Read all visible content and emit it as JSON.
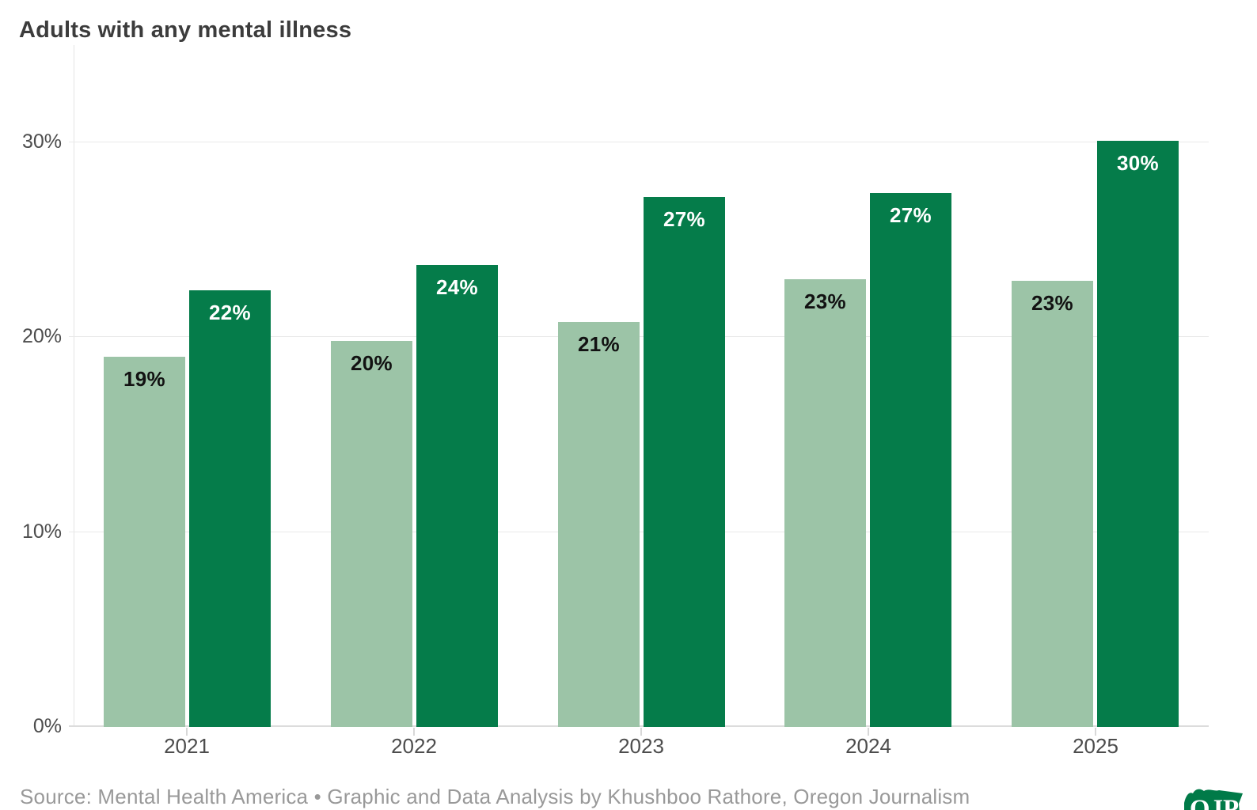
{
  "header": {
    "title": "Adults with any mental illness"
  },
  "chart_data": {
    "type": "bar",
    "title": "Adults with any mental illness",
    "categories": [
      "2021",
      "2022",
      "2023",
      "2024",
      "2025"
    ],
    "series": [
      {
        "name": "lighter-green-series",
        "color": "#9cc4a7",
        "label_color": "#121212",
        "display_labels": [
          "19%",
          "20%",
          "21%",
          "23%",
          "23%"
        ],
        "values": [
          19,
          20,
          21,
          23,
          23
        ],
        "values_precise": [
          19.0,
          19.8,
          20.8,
          23.0,
          22.9
        ]
      },
      {
        "name": "darker-green-series",
        "color": "#057c4a",
        "label_color": "#ffffff",
        "display_labels": [
          "22%",
          "24%",
          "27%",
          "27%",
          "30%"
        ],
        "values": [
          22,
          24,
          27,
          27,
          30
        ],
        "values_precise": [
          22.4,
          23.7,
          27.2,
          27.4,
          30.1
        ]
      }
    ],
    "xlabel": "",
    "ylabel": "",
    "y_axis": {
      "ticks": [
        "0%",
        "10%",
        "20%",
        "30%"
      ],
      "tick_values": [
        0,
        10,
        20,
        30
      ],
      "range": [
        0,
        35
      ]
    },
    "grid": true,
    "legend_position": "none",
    "grid_color": "#e9e9e9",
    "baseline_color": "#dcdcdc",
    "axis_text_color": "#4d4d4d"
  },
  "footer": {
    "source_line": "Source: Mental Health America • Graphic and Data Analysis by Khushboo Rathore, Oregon Journalism",
    "logo_text": "OJP",
    "logo_color": "#007a48"
  }
}
